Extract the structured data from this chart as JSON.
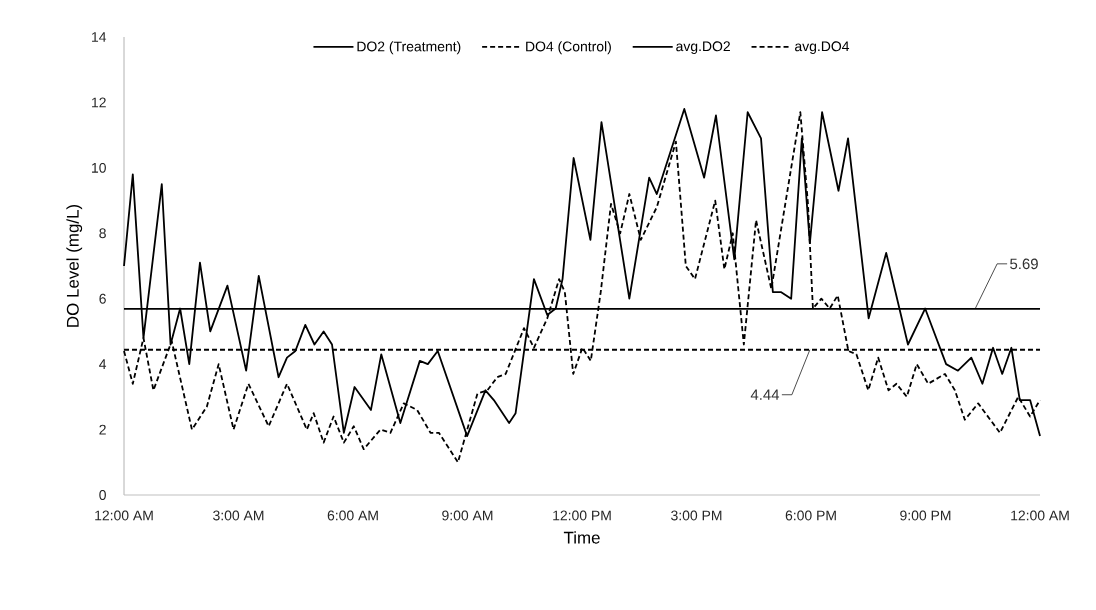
{
  "chart_data": {
    "type": "line",
    "xlabel": "Time",
    "ylabel": "DO Level (mg/L)",
    "xlim": [
      0,
      24
    ],
    "ylim": [
      0,
      14
    ],
    "xticks": [
      {
        "value": 0,
        "label": "12:00 AM"
      },
      {
        "value": 3,
        "label": "3:00 AM"
      },
      {
        "value": 6,
        "label": "6:00 AM"
      },
      {
        "value": 9,
        "label": "9:00 AM"
      },
      {
        "value": 12,
        "label": "12:00 PM"
      },
      {
        "value": 15,
        "label": "3:00 PM"
      },
      {
        "value": 18,
        "label": "6:00 PM"
      },
      {
        "value": 21,
        "label": "9:00 PM"
      },
      {
        "value": 24,
        "label": "12:00 AM"
      }
    ],
    "yticks": [
      0,
      2,
      4,
      6,
      8,
      10,
      12,
      14
    ],
    "grid": false,
    "legend": "top",
    "series": [
      {
        "name": "DO2 (Treatment)",
        "color": "#000000",
        "line_style": "solid",
        "x": [
          0,
          0.23,
          0.51,
          0.99,
          1.22,
          1.47,
          1.71,
          1.99,
          2.26,
          2.71,
          3.2,
          3.53,
          4.05,
          4.27,
          4.49,
          4.75,
          4.99,
          5.23,
          5.45,
          5.76,
          6.04,
          6.47,
          6.74,
          7.24,
          7.75,
          7.96,
          8.22,
          8.99,
          9.47,
          9.69,
          10.09,
          10.26,
          10.74,
          11.09,
          11.31,
          11.49,
          11.78,
          12.22,
          12.51,
          13.24,
          13.76,
          13.96,
          14.68,
          15.2,
          15.51,
          15.99,
          16.34,
          16.69,
          17.0,
          17.22,
          17.48,
          17.76,
          17.97,
          18.29,
          18.72,
          18.97,
          19.51,
          19.97,
          20.54,
          20.99,
          21.54,
          21.85,
          22.2,
          22.49,
          22.77,
          23.01,
          23.25,
          23.47,
          23.74,
          24
        ],
        "values": [
          7.0,
          9.8,
          4.8,
          9.5,
          4.6,
          5.7,
          4.0,
          7.1,
          5.0,
          6.4,
          3.8,
          6.7,
          3.6,
          4.2,
          4.4,
          5.2,
          4.6,
          5.0,
          4.6,
          1.9,
          3.3,
          2.6,
          4.3,
          2.2,
          4.1,
          4.0,
          4.4,
          1.8,
          3.2,
          2.9,
          2.2,
          2.5,
          6.6,
          5.5,
          5.7,
          6.6,
          10.3,
          7.8,
          11.4,
          6.0,
          9.7,
          9.2,
          11.8,
          9.7,
          11.6,
          7.2,
          11.7,
          10.9,
          6.2,
          6.2,
          6.0,
          10.9,
          7.7,
          11.7,
          9.3,
          10.9,
          5.4,
          7.4,
          4.6,
          5.7,
          4.0,
          3.8,
          4.2,
          3.4,
          4.5,
          3.7,
          4.5,
          2.9,
          2.9,
          1.8
        ]
      },
      {
        "name": "DO4 (Control)",
        "color": "#000000",
        "line_style": "dashed",
        "x": [
          0,
          0.23,
          0.51,
          0.77,
          1.25,
          1.78,
          2.17,
          2.48,
          2.87,
          3.26,
          3.79,
          4.27,
          4.79,
          4.97,
          5.23,
          5.49,
          5.76,
          6.02,
          6.28,
          6.72,
          6.98,
          7.33,
          7.68,
          8.03,
          8.25,
          8.75,
          9.26,
          9.52,
          9.78,
          10.0,
          10.48,
          10.74,
          11.09,
          11.4,
          11.55,
          11.77,
          12.01,
          12.23,
          12.49,
          12.76,
          13.0,
          13.24,
          13.54,
          13.96,
          14.46,
          14.72,
          14.96,
          15.49,
          15.73,
          15.95,
          16.24,
          16.56,
          16.96,
          17.72,
          17.92,
          18.05,
          18.27,
          18.49,
          18.7,
          18.98,
          19.19,
          19.5,
          19.76,
          20.03,
          20.24,
          20.51,
          20.77,
          21.07,
          21.51,
          21.77,
          22.03,
          22.38,
          22.95,
          23.43,
          23.74,
          24
        ],
        "values": [
          4.4,
          3.4,
          4.8,
          3.2,
          4.7,
          2.0,
          2.7,
          4.0,
          2.0,
          3.4,
          2.1,
          3.4,
          2.0,
          2.5,
          1.6,
          2.4,
          1.6,
          2.1,
          1.4,
          2.0,
          1.9,
          2.8,
          2.6,
          1.9,
          1.9,
          1.0,
          3.1,
          3.2,
          3.6,
          3.7,
          5.1,
          4.5,
          5.4,
          6.6,
          6.2,
          3.7,
          4.5,
          4.1,
          6.2,
          8.9,
          8.0,
          9.2,
          7.8,
          8.8,
          10.8,
          7.0,
          6.6,
          9.0,
          6.9,
          8.0,
          4.6,
          8.4,
          6.3,
          11.7,
          8.9,
          5.7,
          6.0,
          5.7,
          6.1,
          4.4,
          4.3,
          3.2,
          4.2,
          3.2,
          3.4,
          3.0,
          4.0,
          3.4,
          3.7,
          3.2,
          2.3,
          2.8,
          1.9,
          3.0,
          2.4,
          2.9
        ]
      },
      {
        "name": "avg.DO2",
        "color": "#000000",
        "line_style": "solid",
        "x": [
          0,
          24
        ],
        "values": [
          5.69,
          5.69
        ]
      },
      {
        "name": "avg.DO4",
        "color": "#000000",
        "line_style": "dashed",
        "x": [
          0,
          24
        ],
        "values": [
          4.44,
          4.44
        ]
      }
    ],
    "annotations": [
      {
        "text": "5.69",
        "x": 22.3,
        "y": 5.69
      },
      {
        "text": "4.44",
        "x": 17.97,
        "y": 4.44
      }
    ]
  }
}
